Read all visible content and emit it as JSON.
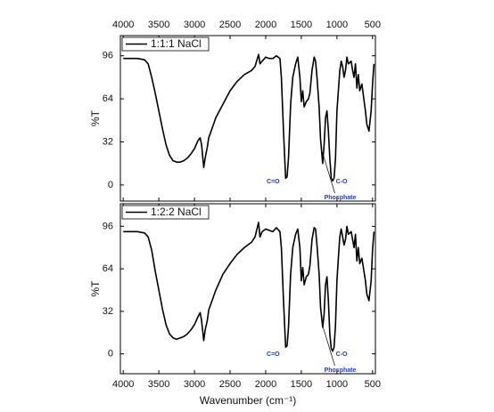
{
  "chart_data": [
    {
      "type": "line",
      "ylabel": "%T",
      "xtick_side": "top",
      "xlim": [
        4040,
        460
      ],
      "ylim": [
        -12,
        111
      ],
      "xticks": [
        4000,
        3500,
        3000,
        2500,
        2000,
        1500,
        1000,
        500
      ],
      "yticks": [
        0,
        32,
        64,
        96
      ],
      "annotations": [
        "C=O",
        "Phosphate",
        "C-O"
      ],
      "x": [
        4000,
        3800,
        3700,
        3650,
        3600,
        3550,
        3500,
        3450,
        3400,
        3350,
        3300,
        3250,
        3200,
        3150,
        3100,
        3050,
        3000,
        2950,
        2920,
        2900,
        2870,
        2850,
        2820,
        2800,
        2700,
        2600,
        2500,
        2400,
        2300,
        2200,
        2150,
        2100,
        2080,
        2050,
        2000,
        1950,
        1900,
        1850,
        1800,
        1780,
        1750,
        1720,
        1700,
        1680,
        1650,
        1620,
        1600,
        1580,
        1550,
        1520,
        1500,
        1480,
        1460,
        1430,
        1400,
        1380,
        1350,
        1320,
        1300,
        1280,
        1250,
        1230,
        1200,
        1180,
        1160,
        1140,
        1120,
        1100,
        1080,
        1060,
        1040,
        1020,
        1000,
        980,
        960,
        940,
        920,
        900,
        880,
        860,
        840,
        800,
        780,
        760,
        740,
        720,
        700,
        680,
        650,
        600,
        580,
        550,
        520,
        500,
        480
      ],
      "series": [
        {
          "name": "1:1:1 NaCl",
          "color": "#000000",
          "values": [
            94,
            94,
            93,
            90,
            80,
            68,
            55,
            42,
            30,
            22,
            18,
            17,
            17,
            18,
            20,
            23,
            27,
            33,
            35,
            30,
            13,
            20,
            28,
            35,
            50,
            60,
            70,
            77,
            82,
            85,
            88,
            97,
            90,
            92,
            95,
            94,
            94,
            96,
            94,
            80,
            40,
            5,
            6,
            20,
            60,
            80,
            85,
            90,
            95,
            80,
            62,
            70,
            58,
            62,
            64,
            68,
            85,
            95,
            92,
            80,
            58,
            34,
            16,
            30,
            50,
            55,
            40,
            20,
            5,
            3,
            5,
            20,
            55,
            70,
            85,
            92,
            88,
            80,
            85,
            95,
            90,
            92,
            85,
            80,
            90,
            72,
            82,
            70,
            75,
            55,
            45,
            40,
            55,
            75,
            90
          ]
        }
      ]
    },
    {
      "type": "line",
      "ylabel": "%T",
      "xlabel": "Wavenumber (cm⁻¹)",
      "xtick_side": "bottom",
      "xlim": [
        4040,
        460
      ],
      "ylim": [
        -15,
        113
      ],
      "xticks": [
        4000,
        3500,
        3000,
        2500,
        2000,
        1500,
        1000,
        500
      ],
      "yticks": [
        0,
        32,
        64,
        96
      ],
      "annotations": [
        "C=O",
        "Phosphate",
        "C-O"
      ],
      "x": [
        4000,
        3800,
        3700,
        3650,
        3600,
        3550,
        3500,
        3450,
        3400,
        3350,
        3300,
        3250,
        3200,
        3150,
        3100,
        3050,
        3000,
        2950,
        2920,
        2900,
        2870,
        2850,
        2820,
        2800,
        2700,
        2600,
        2500,
        2400,
        2300,
        2200,
        2150,
        2100,
        2080,
        2050,
        2000,
        1950,
        1900,
        1850,
        1800,
        1780,
        1750,
        1720,
        1700,
        1680,
        1650,
        1620,
        1600,
        1580,
        1550,
        1520,
        1500,
        1480,
        1460,
        1430,
        1400,
        1380,
        1350,
        1320,
        1300,
        1280,
        1250,
        1230,
        1200,
        1180,
        1160,
        1140,
        1120,
        1100,
        1080,
        1060,
        1040,
        1020,
        1000,
        980,
        960,
        940,
        920,
        900,
        880,
        860,
        840,
        800,
        780,
        760,
        740,
        720,
        700,
        680,
        650,
        600,
        580,
        550,
        520,
        500,
        480
      ],
      "series": [
        {
          "name": "1:2:2 NaCl",
          "color": "#000000",
          "values": [
            92,
            92,
            91,
            88,
            78,
            62,
            48,
            34,
            22,
            15,
            12,
            11,
            12,
            13,
            15,
            18,
            22,
            28,
            31,
            25,
            10,
            18,
            25,
            33,
            48,
            60,
            68,
            75,
            80,
            84,
            88,
            99,
            88,
            92,
            94,
            93,
            92,
            95,
            92,
            80,
            40,
            5,
            6,
            20,
            60,
            80,
            85,
            90,
            94,
            80,
            55,
            65,
            52,
            58,
            60,
            66,
            86,
            95,
            94,
            82,
            60,
            35,
            20,
            30,
            52,
            58,
            40,
            15,
            4,
            2,
            5,
            22,
            55,
            72,
            88,
            94,
            88,
            82,
            86,
            96,
            90,
            92,
            86,
            80,
            90,
            70,
            80,
            68,
            72,
            55,
            45,
            40,
            55,
            78,
            92
          ]
        }
      ]
    }
  ]
}
